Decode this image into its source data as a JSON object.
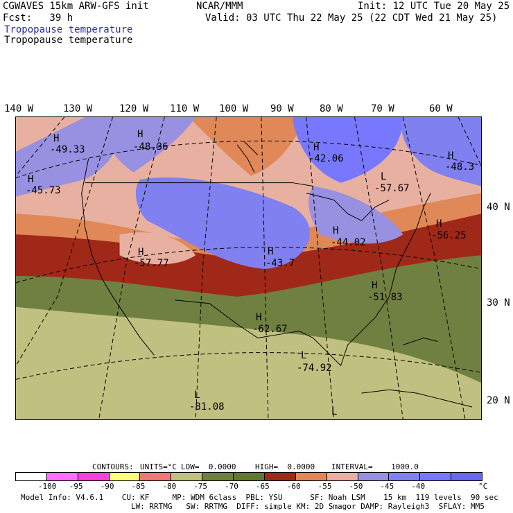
{
  "header": {
    "title_left": "CGWAVES 15km ARW-GFS init",
    "fcst": "Fcst:   39 h",
    "center": "NCAR/MMM",
    "init": "Init: 12 UTC Tue 20 May 25",
    "valid": "Valid: 03 UTC Thu 22 May 25 (22 CDT Wed 21 May 25)",
    "field_line_1": "Tropopause temperature",
    "field_line_2": "Tropopause temperature"
  },
  "lon_labels": [
    "140 W",
    "130 W",
    "120 W",
    "110 W",
    "100 W",
    "90 W",
    "80 W",
    "70 W",
    "60 W"
  ],
  "lat_labels": [
    "40 N",
    "30 N",
    "20 N"
  ],
  "map_labels": [
    {
      "sym": "H",
      "val": "-49.33"
    },
    {
      "sym": "H",
      "val": "-48.36"
    },
    {
      "sym": "H",
      "val": "-45.73"
    },
    {
      "sym": "H",
      "val": "-42.06"
    },
    {
      "sym": "L",
      "val": "-57.67"
    },
    {
      "sym": "H",
      "val": "-48.3"
    },
    {
      "sym": "H",
      "val": "-44.02"
    },
    {
      "sym": "H",
      "val": "-56.25"
    },
    {
      "sym": "H",
      "val": "-57.77"
    },
    {
      "sym": "H",
      "val": "-43.7"
    },
    {
      "sym": "H",
      "val": "-51.83"
    },
    {
      "sym": "H",
      "val": "-62.67"
    },
    {
      "sym": "L",
      "val": "-74.92"
    },
    {
      "sym": "L",
      "val": "-81.08"
    },
    {
      "sym": "L",
      "val": ""
    }
  ],
  "contour_info": {
    "contours": "CONTOURS:",
    "units": "UNITS=°C",
    "low": "LOW=  0.0000",
    "high": "HIGH=  0.0000",
    "interval": "INTERVAL=    1000.0"
  },
  "colorbar": {
    "colors": [
      "#ffffff",
      "#ff70ff",
      "#ff40d8",
      "#ffff80",
      "#f07878",
      "#c0c080",
      "#708040",
      "#607830",
      "#a02818",
      "#e08858",
      "#e8b0a0",
      "#9890e0",
      "#8080f0",
      "#7878ff",
      "#6868f8"
    ],
    "labels": [
      "-100",
      "-95",
      "-90",
      "-85",
      "-80",
      "-75",
      "-70",
      "-65",
      "-60",
      "-55",
      "-50",
      "-45",
      "-40"
    ],
    "unit": "°C"
  },
  "footer": {
    "line1": "Model Info: V4.6.1    CU: KF     MP: WDM 6class  PBL: YSU      SF: Noah LSM    15 km  119 levels  90 sec",
    "line2": "                        LW: RRTMG   SW: RRTMG  DIFF: simple KM: 2D Smagor DAMP: Rayleigh3  SFLAY: MM5"
  }
}
